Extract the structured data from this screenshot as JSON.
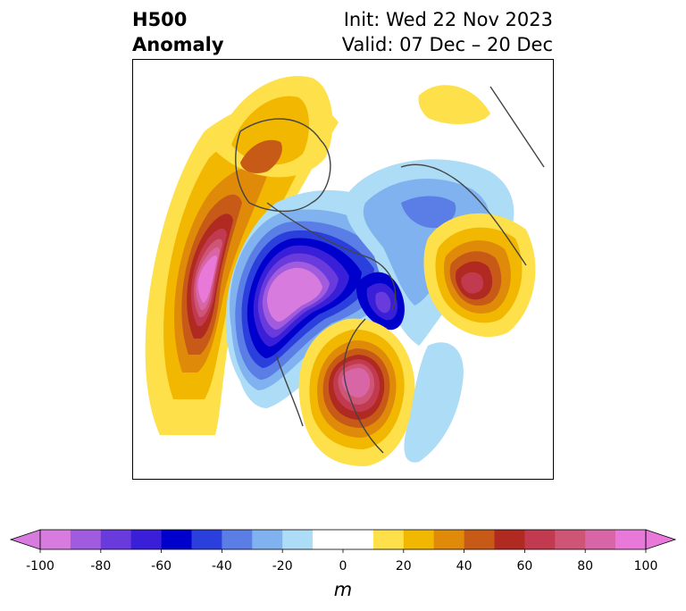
{
  "title": {
    "left_line1": "H500",
    "left_line2": "Anomaly",
    "right_line1": "Init: Wed 22 Nov 2023",
    "right_line2": "Valid: 07 Dec – 20 Dec"
  },
  "colorbar": {
    "unit": "m",
    "ticks": [
      "-100",
      "-80",
      "-60",
      "-40",
      "-20",
      "0",
      "20",
      "40",
      "60",
      "80",
      "100"
    ],
    "bins": [
      {
        "value": -95,
        "color": "#d77bdf"
      },
      {
        "value": -85,
        "color": "#a15bde"
      },
      {
        "value": -75,
        "color": "#6a3bdc"
      },
      {
        "value": -65,
        "color": "#3a1fd8"
      },
      {
        "value": -55,
        "color": "#0000cc"
      },
      {
        "value": -45,
        "color": "#2a3fdc"
      },
      {
        "value": -35,
        "color": "#5a7de6"
      },
      {
        "value": -25,
        "color": "#7fb2ee"
      },
      {
        "value": -15,
        "color": "#addcf7"
      },
      {
        "value": -5,
        "color": "#ffffff"
      },
      {
        "value": 5,
        "color": "#ffffff"
      },
      {
        "value": 15,
        "color": "#fde04a"
      },
      {
        "value": 25,
        "color": "#f2b700"
      },
      {
        "value": 35,
        "color": "#e08a0a"
      },
      {
        "value": 45,
        "color": "#c85a18"
      },
      {
        "value": 55,
        "color": "#b02a22"
      },
      {
        "value": 65,
        "color": "#c13a50"
      },
      {
        "value": 75,
        "color": "#cf5577"
      },
      {
        "value": 85,
        "color": "#d866a7"
      },
      {
        "value": 95,
        "color": "#e879d8"
      }
    ],
    "extend_min_color": "#d77bdf",
    "extend_max_color": "#e879d8"
  },
  "map": {
    "projection": "north-polar-stereographic",
    "features": [
      {
        "name": "ridge-north-pacific",
        "sign": "positive",
        "peak_m": 95
      },
      {
        "name": "trough-western-north-america",
        "sign": "negative",
        "peak_m": -95
      },
      {
        "name": "trough-greenland-labrador",
        "sign": "negative",
        "peak_m": -65
      },
      {
        "name": "ridge-siberia-east-asia",
        "sign": "positive",
        "peak_m": 65
      },
      {
        "name": "ridge-europe-north-atlantic",
        "sign": "positive",
        "peak_m": 85
      },
      {
        "name": "weak-negative-central-asia",
        "sign": "negative",
        "peak_m": -25
      }
    ]
  }
}
